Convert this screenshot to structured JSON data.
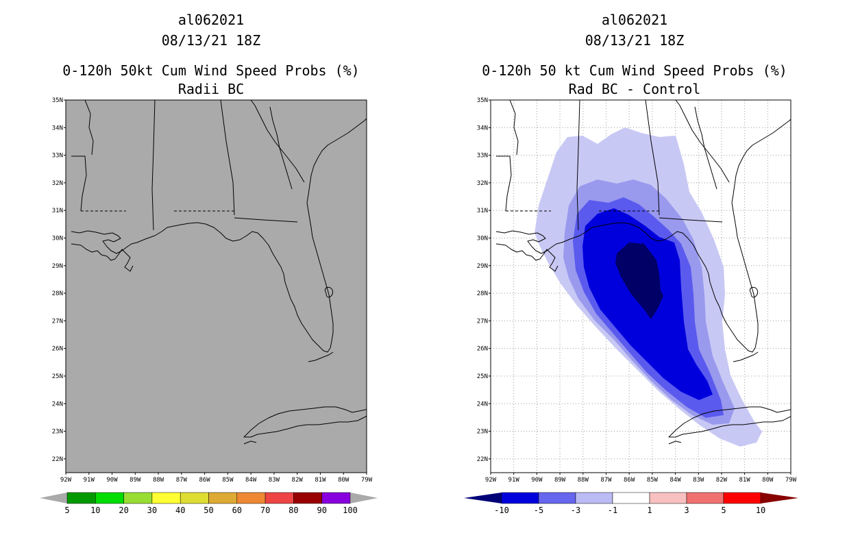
{
  "left_panel": {
    "title_lines": [
      "al062021",
      "08/13/21 18Z",
      "0-120h 50kt Cum Wind Speed Probs (%)",
      "Radii BC"
    ],
    "lat_labels": [
      "35N",
      "34N",
      "33N",
      "32N",
      "31N",
      "30N",
      "29N",
      "28N",
      "27N",
      "26N",
      "25N",
      "24N",
      "23N",
      "22N"
    ],
    "lon_labels": [
      "92W",
      "91W",
      "90W",
      "89W",
      "88W",
      "87W",
      "86W",
      "85W",
      "84W",
      "83W",
      "82W",
      "81W",
      "80W",
      "79W"
    ],
    "colorbar": {
      "labels": [
        "5",
        "10",
        "20",
        "30",
        "40",
        "50",
        "60",
        "70",
        "80",
        "90",
        "100"
      ],
      "colors": [
        "#009900",
        "#00dd00",
        "#99dd33",
        "#ffff33",
        "#dddd33",
        "#ddaa33",
        "#ee8833",
        "#ee4444",
        "#990000",
        "#8800dd"
      ],
      "low_arrow_color": "#aaaaaa",
      "high_arrow_color": "#aaaaaa"
    },
    "background": "#aaaaaa"
  },
  "right_panel": {
    "title_lines": [
      "al062021",
      "08/13/21 18Z",
      "0-120h 50 kt Cum Wind Speed Probs (%)",
      "Rad BC - Control"
    ],
    "lat_labels": [
      "35N",
      "34N",
      "33N",
      "32N",
      "31N",
      "30N",
      "29N",
      "28N",
      "27N",
      "26N",
      "25N",
      "24N",
      "23N",
      "22N"
    ],
    "lon_labels": [
      "92W",
      "91W",
      "90W",
      "89W",
      "88W",
      "87W",
      "86W",
      "85W",
      "84W",
      "83W",
      "82W",
      "81W",
      "80W",
      "79W"
    ],
    "colorbar": {
      "labels": [
        "-10",
        "-5",
        "-3",
        "-1",
        "1",
        "3",
        "5",
        "10"
      ],
      "colors": [
        "#0000dd",
        "#6666ee",
        "#bbbbf5",
        "#ffffff",
        "#f8c0c0",
        "#f07070",
        "#ff0000"
      ],
      "low_arrow_color": "#000077",
      "high_arrow_color": "#880000"
    },
    "contour_colors": [
      "#c8c8f5",
      "#9999ee",
      "#5a5aee",
      "#0000dd",
      "#000066"
    ]
  }
}
